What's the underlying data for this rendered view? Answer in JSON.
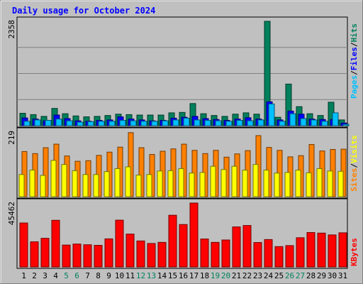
{
  "title": "Daily usage for October 2024",
  "colors": {
    "background": "#c0c0c0",
    "title": "#0000ff",
    "hits": "#00805c",
    "files": "#0000ff",
    "pages": "#00c0ff",
    "visits": "#ffff00",
    "sites": "#ff8000",
    "kbytes": "#ff0000",
    "weekend_label": "#00805c"
  },
  "side_labels": {
    "top": [
      "Pages",
      "/",
      "Files",
      "/",
      "Hits"
    ],
    "middle": [
      "Sites",
      "/",
      "Visits"
    ],
    "bottom": [
      "KBytes"
    ]
  },
  "chart_data": [
    {
      "type": "bar",
      "panel": "hits-files-pages",
      "ylabel": "2358",
      "ylim": [
        0,
        2358
      ],
      "grid": true,
      "categories": [
        "1",
        "2",
        "3",
        "4",
        "5",
        "6",
        "7",
        "8",
        "9",
        "10",
        "11",
        "12",
        "13",
        "14",
        "15",
        "16",
        "17",
        "18",
        "19",
        "20",
        "21",
        "22",
        "23",
        "24",
        "25",
        "26",
        "27",
        "28",
        "29",
        "30",
        "31"
      ],
      "series": [
        {
          "name": "Hits",
          "values": [
            280,
            250,
            210,
            390,
            270,
            220,
            200,
            210,
            230,
            260,
            250,
            240,
            240,
            240,
            290,
            300,
            500,
            270,
            230,
            210,
            260,
            290,
            260,
            2358,
            190,
            940,
            430,
            270,
            230,
            530,
            130
          ]
        },
        {
          "name": "Files",
          "values": [
            175,
            150,
            110,
            240,
            160,
            110,
            100,
            120,
            130,
            200,
            150,
            130,
            110,
            120,
            170,
            190,
            210,
            160,
            140,
            120,
            150,
            180,
            150,
            540,
            130,
            330,
            260,
            150,
            140,
            140,
            60
          ]
        },
        {
          "name": "Pages",
          "values": [
            100,
            130,
            120,
            150,
            110,
            80,
            90,
            100,
            100,
            120,
            110,
            100,
            100,
            110,
            130,
            170,
            130,
            120,
            110,
            100,
            120,
            110,
            130,
            490,
            100,
            270,
            160,
            130,
            100,
            290,
            30
          ]
        }
      ]
    },
    {
      "type": "bar",
      "panel": "sites-visits",
      "ylabel": "219",
      "ylim": [
        0,
        219
      ],
      "categories": [
        "1",
        "2",
        "3",
        "4",
        "5",
        "6",
        "7",
        "8",
        "9",
        "10",
        "11",
        "12",
        "13",
        "14",
        "15",
        "16",
        "17",
        "18",
        "19",
        "20",
        "21",
        "22",
        "23",
        "24",
        "25",
        "26",
        "27",
        "28",
        "29",
        "30",
        "31"
      ],
      "series": [
        {
          "name": "Sites",
          "values": [
            153,
            146,
            166,
            178,
            138,
            120,
            122,
            140,
            151,
            168,
            217,
            166,
            143,
            154,
            162,
            178,
            157,
            146,
            157,
            134,
            145,
            156,
            207,
            167,
            157,
            135,
            139,
            177,
            155,
            160,
            161
          ]
        },
        {
          "name": "Visits",
          "values": [
            75,
            90,
            72,
            123,
            109,
            88,
            75,
            75,
            85,
            95,
            101,
            73,
            75,
            87,
            88,
            95,
            80,
            82,
            103,
            92,
            103,
            90,
            109,
            90,
            80,
            82,
            90,
            81,
            95,
            87,
            86
          ]
        }
      ]
    },
    {
      "type": "bar",
      "panel": "kbytes",
      "ylabel": "45462",
      "ylim": [
        0,
        45462
      ],
      "categories": [
        "1",
        "2",
        "3",
        "4",
        "5",
        "6",
        "7",
        "8",
        "9",
        "10",
        "11",
        "12",
        "13",
        "14",
        "15",
        "16",
        "17",
        "18",
        "19",
        "20",
        "21",
        "22",
        "23",
        "24",
        "25",
        "26",
        "27",
        "28",
        "29",
        "30",
        "31"
      ],
      "series": [
        {
          "name": "KBytes",
          "values": [
            31300,
            17900,
            20400,
            33200,
            15600,
            16300,
            15800,
            15400,
            20000,
            33300,
            23400,
            18500,
            16700,
            17500,
            36800,
            30200,
            45462,
            19900,
            17500,
            19200,
            28500,
            29500,
            17400,
            19500,
            14500,
            15200,
            20800,
            24500,
            24100,
            22800,
            24300
          ]
        }
      ]
    }
  ],
  "weekend_days": [
    "5",
    "6",
    "12",
    "13",
    "19",
    "20",
    "26",
    "27"
  ]
}
